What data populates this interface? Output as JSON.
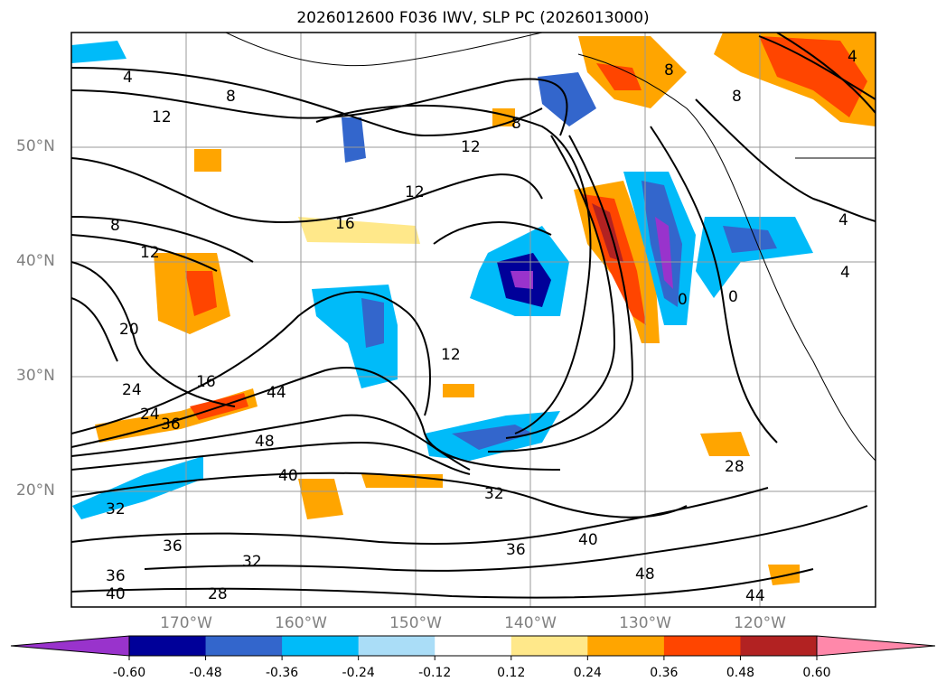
{
  "title": "2026012600 F036 IWV, SLP PC (2026013000)",
  "lat_labels": [
    "50°N",
    "40°N",
    "30°N",
    "20°N"
  ],
  "lon_labels": [
    "170°W",
    "160°W",
    "150°W",
    "140°W",
    "130°W",
    "120°W"
  ],
  "colorbar": {
    "ticks": [
      "-0.60",
      "-0.48",
      "-0.36",
      "-0.24",
      "-0.12",
      "0.12",
      "0.24",
      "0.36",
      "0.48",
      "0.60"
    ],
    "colors": [
      "#9933cc",
      "#000099",
      "#3366cc",
      "#00bbf9",
      "#aaddf7",
      "#ffffff",
      "#ffe88a",
      "#ffa500",
      "#ff4500",
      "#b22222",
      "#ff88aa"
    ]
  },
  "contour_labels": [
    "4",
    "8",
    "12",
    "12",
    "12",
    "16",
    "8",
    "12",
    "20",
    "24",
    "16",
    "24",
    "36",
    "44",
    "48",
    "40",
    "32",
    "36",
    "32",
    "36",
    "40",
    "28",
    "32",
    "36",
    "40",
    "48",
    "44",
    "28",
    "12",
    "8",
    "4",
    "4",
    "4",
    "8",
    "0",
    "0",
    "8"
  ]
}
